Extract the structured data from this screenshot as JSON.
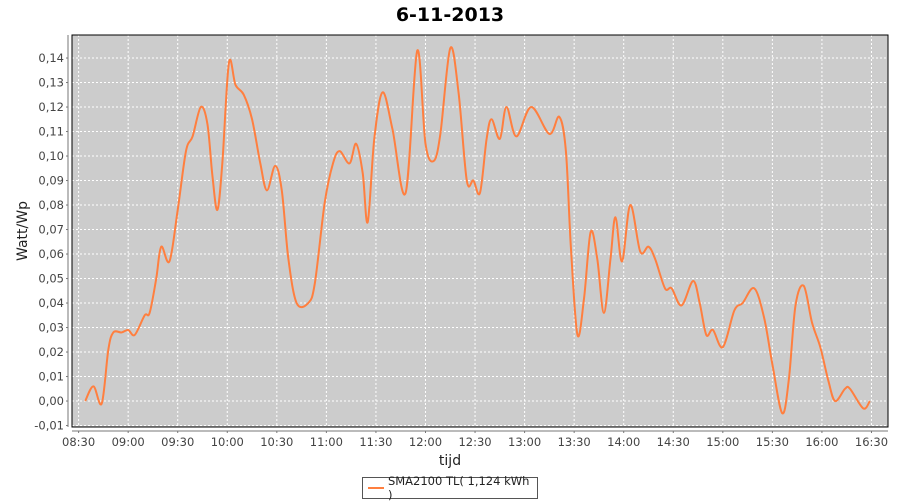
{
  "chart_data": {
    "type": "line",
    "title": "6-11-2013",
    "xlabel": "tijd",
    "ylabel": "Watt/Wp",
    "xlim": [
      "08:26",
      "16:40"
    ],
    "ylim": [
      -0.0106,
      0.1494
    ],
    "grid": true,
    "legend_position": "bottom",
    "plot_background": "#cccccc",
    "x_ticks": [
      "08:30",
      "09:00",
      "09:30",
      "10:00",
      "10:30",
      "11:00",
      "11:30",
      "12:00",
      "12:30",
      "13:00",
      "13:30",
      "14:00",
      "14:30",
      "15:00",
      "15:30",
      "16:00",
      "16:30"
    ],
    "y_ticks": [
      "-0,01",
      "0,00",
      "0,01",
      "0,02",
      "0,03",
      "0,04",
      "0,05",
      "0,06",
      "0,07",
      "0,08",
      "0,09",
      "0,10",
      "0,11",
      "0,12",
      "0,13",
      "0,14"
    ],
    "y_tick_values": [
      -0.01,
      0,
      0.01,
      0.02,
      0.03,
      0.04,
      0.05,
      0.06,
      0.07,
      0.08,
      0.09,
      0.1,
      0.11,
      0.12,
      0.13,
      0.14
    ],
    "series": [
      {
        "name": "SMA2100 TL( 1,124 kWh )",
        "color": "#ff7f3f",
        "points": [
          [
            "08:34",
            0.0
          ],
          [
            "08:39",
            0.006
          ],
          [
            "08:44",
            -0.001
          ],
          [
            "08:48",
            0.021
          ],
          [
            "08:51",
            0.028
          ],
          [
            "08:56",
            0.028
          ],
          [
            "09:00",
            0.029
          ],
          [
            "09:04",
            0.027
          ],
          [
            "09:10",
            0.035
          ],
          [
            "09:13",
            0.036
          ],
          [
            "09:17",
            0.05
          ],
          [
            "09:20",
            0.063
          ],
          [
            "09:25",
            0.057
          ],
          [
            "09:30",
            0.078
          ],
          [
            "09:35",
            0.102
          ],
          [
            "09:39",
            0.108
          ],
          [
            "09:44",
            0.12
          ],
          [
            "09:48",
            0.113
          ],
          [
            "09:51",
            0.092
          ],
          [
            "09:54",
            0.078
          ],
          [
            "09:57",
            0.097
          ],
          [
            "10:01",
            0.138
          ],
          [
            "10:05",
            0.129
          ],
          [
            "10:10",
            0.125
          ],
          [
            "10:15",
            0.115
          ],
          [
            "10:20",
            0.097
          ],
          [
            "10:24",
            0.086
          ],
          [
            "10:29",
            0.096
          ],
          [
            "10:33",
            0.086
          ],
          [
            "10:37",
            0.058
          ],
          [
            "10:42",
            0.04
          ],
          [
            "10:49",
            0.04
          ],
          [
            "10:53",
            0.048
          ],
          [
            "10:59",
            0.081
          ],
          [
            "11:04",
            0.097
          ],
          [
            "11:08",
            0.102
          ],
          [
            "11:14",
            0.097
          ],
          [
            "11:18",
            0.105
          ],
          [
            "11:22",
            0.093
          ],
          [
            "11:25",
            0.073
          ],
          [
            "11:29",
            0.107
          ],
          [
            "11:34",
            0.126
          ],
          [
            "11:40",
            0.111
          ],
          [
            "11:48",
            0.085
          ],
          [
            "11:55",
            0.143
          ],
          [
            "12:00",
            0.105
          ],
          [
            "12:05",
            0.098
          ],
          [
            "12:09",
            0.109
          ],
          [
            "12:15",
            0.144
          ],
          [
            "12:20",
            0.126
          ],
          [
            "12:25",
            0.09
          ],
          [
            "12:29",
            0.09
          ],
          [
            "12:33",
            0.085
          ],
          [
            "12:37",
            0.107
          ],
          [
            "12:40",
            0.115
          ],
          [
            "12:45",
            0.107
          ],
          [
            "12:49",
            0.12
          ],
          [
            "12:55",
            0.108
          ],
          [
            "13:04",
            0.12
          ],
          [
            "13:15",
            0.109
          ],
          [
            "13:21",
            0.116
          ],
          [
            "13:25",
            0.102
          ],
          [
            "13:28",
            0.063
          ],
          [
            "13:32",
            0.027
          ],
          [
            "13:36",
            0.042
          ],
          [
            "13:40",
            0.069
          ],
          [
            "13:44",
            0.058
          ],
          [
            "13:48",
            0.036
          ],
          [
            "13:52",
            0.058
          ],
          [
            "13:55",
            0.075
          ],
          [
            "13:59",
            0.057
          ],
          [
            "14:04",
            0.08
          ],
          [
            "14:10",
            0.061
          ],
          [
            "14:15",
            0.063
          ],
          [
            "14:19",
            0.058
          ],
          [
            "14:25",
            0.046
          ],
          [
            "14:29",
            0.046
          ],
          [
            "14:35",
            0.039
          ],
          [
            "14:42",
            0.049
          ],
          [
            "14:46",
            0.04
          ],
          [
            "14:50",
            0.027
          ],
          [
            "14:54",
            0.029
          ],
          [
            "15:00",
            0.022
          ],
          [
            "15:07",
            0.037
          ],
          [
            "15:12",
            0.04
          ],
          [
            "15:19",
            0.046
          ],
          [
            "15:25",
            0.034
          ],
          [
            "15:30",
            0.015
          ],
          [
            "15:36",
            -0.005
          ],
          [
            "15:40",
            0.009
          ],
          [
            "15:44",
            0.039
          ],
          [
            "15:49",
            0.047
          ],
          [
            "15:54",
            0.032
          ],
          [
            "15:59",
            0.022
          ],
          [
            "16:04",
            0.008
          ],
          [
            "16:08",
            0.0
          ],
          [
            "16:14",
            0.005
          ],
          [
            "16:17",
            0.005
          ],
          [
            "16:25",
            -0.003
          ],
          [
            "16:29",
            0.0
          ]
        ]
      }
    ]
  }
}
